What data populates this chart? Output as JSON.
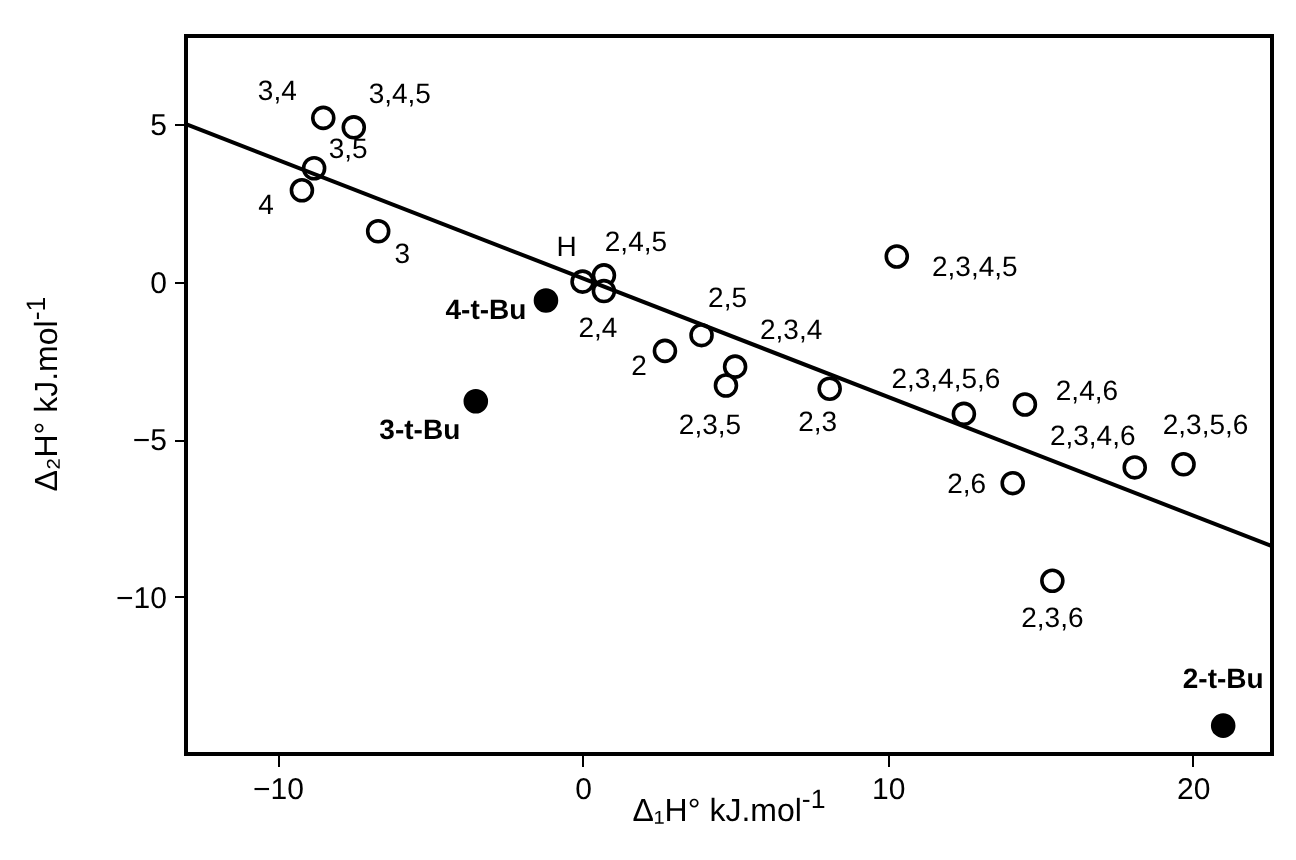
{
  "chart_data": {
    "type": "scatter",
    "xlabel": "Δ₁H° kJ.mol$^{-1}$",
    "ylabel": "Δ₂H° kJ.mol$^{-1}$",
    "xlim": [
      -13,
      22.6
    ],
    "ylim": [
      -15,
      7.8
    ],
    "xticks": [
      -10,
      0,
      10,
      20
    ],
    "yticks": [
      -10,
      -5,
      0,
      5
    ],
    "series": [
      {
        "marker": "circle",
        "color": "#ffffff",
        "x": [
          -8.5,
          -7.5,
          -8.8,
          -9.2,
          -6.7,
          0.0,
          0.7,
          0.7,
          2.7,
          3.9,
          5.0,
          4.7,
          8.1,
          10.3,
          12.5,
          14.5,
          18.1,
          19.7,
          14.1,
          15.4
        ],
        "values": [
          5.2,
          4.9,
          3.6,
          2.9,
          1.6,
          0.0,
          0.2,
          -0.3,
          -2.2,
          -1.7,
          -2.7,
          -3.3,
          -3.4,
          0.8,
          -4.2,
          -3.9,
          -5.9,
          -5.8,
          -6.4,
          -9.5
        ]
      },
      {
        "marker": "circle",
        "color": "#000000",
        "x": [
          -1.2,
          -3.5,
          21.0
        ],
        "values": [
          -0.6,
          -3.8,
          -14.1
        ]
      },
      {
        "type": "line",
        "color": "#000000",
        "x": [
          -13,
          22.6
        ],
        "values": [
          5.0,
          -8.4
        ]
      }
    ],
    "annotations": [
      {
        "text": "3,4",
        "x": -8.5,
        "y": 5.2
      },
      {
        "text": "3,4,5",
        "x": -7.5,
        "y": 4.9
      },
      {
        "text": "3,5",
        "x": -8.8,
        "y": 3.6
      },
      {
        "text": "4",
        "x": -9.2,
        "y": 2.9
      },
      {
        "text": "3",
        "x": -6.7,
        "y": 1.6
      },
      {
        "text": "H",
        "x": 0.0,
        "y": 0.0
      },
      {
        "text": "2,4,5",
        "x": 0.7,
        "y": 0.2
      },
      {
        "text": "2,4",
        "x": 0.7,
        "y": -0.3
      },
      {
        "text": "4-t-Bu",
        "x": -1.2,
        "y": -0.6
      },
      {
        "text": "3-t-Bu",
        "x": -3.5,
        "y": -3.8
      },
      {
        "text": "2",
        "x": 2.7,
        "y": -2.2
      },
      {
        "text": "2,5",
        "x": 3.9,
        "y": -1.7
      },
      {
        "text": "2,3,4",
        "x": 5.0,
        "y": -2.7
      },
      {
        "text": "2,3,5",
        "x": 4.7,
        "y": -3.3
      },
      {
        "text": "2,3",
        "x": 8.1,
        "y": -3.4
      },
      {
        "text": "2,3,4,5",
        "x": 10.3,
        "y": 0.8
      },
      {
        "text": "2,3,4,5,6",
        "x": 12.5,
        "y": -4.2
      },
      {
        "text": "2,4,6",
        "x": 14.5,
        "y": -3.9
      },
      {
        "text": "2,3,4,6",
        "x": 18.1,
        "y": -5.9
      },
      {
        "text": "2,3,5,6",
        "x": 19.7,
        "y": -5.8
      },
      {
        "text": "2,6",
        "x": 14.1,
        "y": -6.4
      },
      {
        "text": "2,3,6",
        "x": 15.4,
        "y": -9.5
      },
      {
        "text": "2-t-Bu",
        "x": 21.0,
        "y": -14.1
      }
    ]
  }
}
